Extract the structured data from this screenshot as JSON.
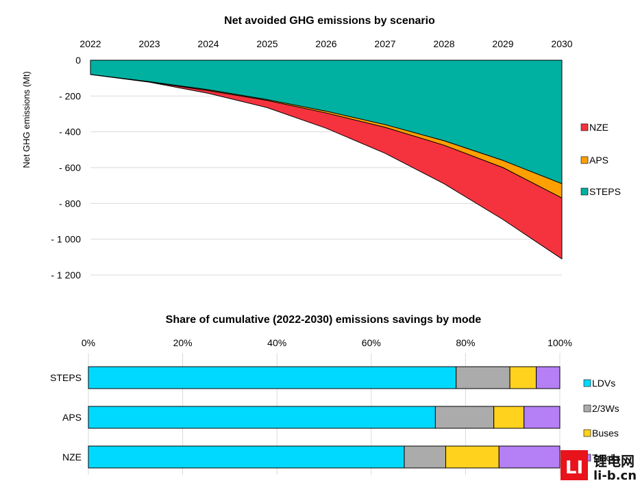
{
  "colors": {
    "STEPS": "#00b0a0",
    "APS": "#ff9f00",
    "NZE": "#f5333f",
    "LDVs": "#00d9ff",
    "2/3Ws": "#ababab",
    "Buses": "#ffd21e",
    "Trucks": "#b57ff5",
    "grid": "#d9d9d9",
    "watermark": "#e8131b"
  },
  "chart_data": [
    {
      "type": "area",
      "title": "Net avoided GHG emissions by scenario",
      "xlabel": "",
      "ylabel": "Net GHG emissions (Mt)",
      "x": [
        2022,
        2023,
        2024,
        2025,
        2026,
        2027,
        2028,
        2029,
        2030
      ],
      "x_tick_labels": [
        "2022",
        "2023",
        "2024",
        "2025",
        "2026",
        "2027",
        "2028",
        "2029",
        "2030"
      ],
      "ylim": [
        -1200,
        0
      ],
      "y_ticks": [
        0,
        -200,
        -400,
        -600,
        -800,
        -1000,
        -1200
      ],
      "y_tick_labels": [
        "0",
        "- 200",
        "- 400",
        "- 600",
        "- 800",
        "- 1 000",
        "- 1 200"
      ],
      "x_axis_position": "top",
      "series": [
        {
          "name": "STEPS",
          "values": [
            -80,
            -120,
            -165,
            -220,
            -285,
            -360,
            -450,
            -560,
            -690
          ]
        },
        {
          "name": "APS",
          "values": [
            -80,
            -122,
            -170,
            -225,
            -295,
            -375,
            -475,
            -600,
            -770
          ]
        },
        {
          "name": "NZE",
          "values": [
            -80,
            -123,
            -185,
            -265,
            -380,
            -520,
            -690,
            -890,
            -1110
          ]
        }
      ],
      "legend": [
        "NZE",
        "APS",
        "STEPS"
      ],
      "legend_position": "right"
    },
    {
      "type": "bar",
      "orientation": "horizontal",
      "stacked": true,
      "title": "Share of cumulative (2022-2030) emissions savings by mode",
      "categories": [
        "STEPS",
        "APS",
        "NZE"
      ],
      "x_ticks": [
        0,
        20,
        40,
        60,
        80,
        100
      ],
      "x_tick_labels": [
        "0%",
        "20%",
        "40%",
        "60%",
        "80%",
        "100%"
      ],
      "xlim": [
        0,
        100
      ],
      "series": [
        {
          "name": "LDVs",
          "values": [
            78,
            73.6,
            67
          ]
        },
        {
          "name": "2/3Ws",
          "values": [
            11.4,
            12.4,
            8.8
          ]
        },
        {
          "name": "Buses",
          "values": [
            5.6,
            6.4,
            11.3
          ]
        },
        {
          "name": "Trucks",
          "values": [
            5,
            7.6,
            12.9
          ]
        }
      ],
      "legend": [
        "LDVs",
        "2/3Ws",
        "Buses",
        "Trucks"
      ],
      "legend_position": "right"
    }
  ],
  "watermark": {
    "logo_text": "LI",
    "chinese": "锂电网",
    "domain": "li-b.cn"
  }
}
